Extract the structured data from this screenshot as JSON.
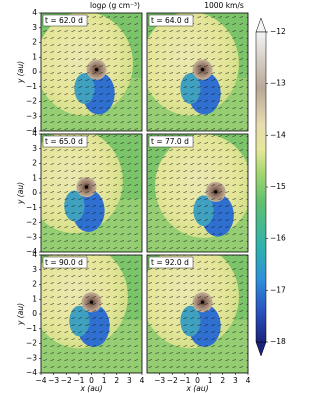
{
  "chart_data": [
    {
      "type": "heatmap",
      "label": "t = 62.0 d",
      "xlim": [
        -4,
        4
      ],
      "ylim": [
        -4,
        4
      ],
      "ylabel": "y (au)",
      "yticks": [
        {
          "value": -4,
          "label": "−4"
        },
        {
          "value": -3,
          "label": "−3"
        },
        {
          "value": -2,
          "label": "−2"
        },
        {
          "value": -1,
          "label": "−1"
        },
        0,
        1,
        2,
        3,
        4
      ]
    },
    {
      "type": "heatmap",
      "label": "t = 64.0 d",
      "xlim": [
        -4,
        4
      ],
      "ylim": [
        -4,
        4
      ]
    },
    {
      "type": "heatmap",
      "label": "t = 65.0 d",
      "xlim": [
        -4,
        4
      ],
      "ylim": [
        -4,
        4
      ],
      "ylabel": "y (au)",
      "yticks": [
        {
          "value": -4,
          "label": "−4"
        },
        {
          "value": -3,
          "label": "−3"
        },
        {
          "value": -2,
          "label": "−2"
        },
        {
          "value": -1,
          "label": "−1"
        },
        0,
        1,
        2,
        3,
        4
      ]
    },
    {
      "type": "heatmap",
      "label": "t = 77.0 d",
      "xlim": [
        -4,
        4
      ],
      "ylim": [
        -4,
        4
      ]
    },
    {
      "type": "heatmap",
      "label": "t = 90.0 d",
      "xlim": [
        -4,
        4
      ],
      "ylim": [
        -4,
        4
      ],
      "ylabel": "y (au)",
      "xlabel": "x (au)",
      "yticks": [
        {
          "value": -4,
          "label": "−4"
        },
        {
          "value": -3,
          "label": "−3"
        },
        {
          "value": -2,
          "label": "−2"
        },
        {
          "value": -1,
          "label": "−1"
        },
        0,
        1,
        2,
        3,
        4
      ],
      "xticks": [
        {
          "value": -4,
          "label": "−4"
        },
        {
          "value": -3,
          "label": "−3"
        },
        {
          "value": -2,
          "label": "−2"
        },
        {
          "value": -1,
          "label": "−1"
        },
        0,
        1,
        2,
        3,
        4
      ]
    },
    {
      "type": "heatmap",
      "label": "t = 92.0 d",
      "xlim": [
        -4,
        4
      ],
      "ylim": [
        -4,
        4
      ],
      "xlabel": "x (au)",
      "xticks": [
        {
          "value": -3,
          "label": "−3"
        },
        {
          "value": -2,
          "label": "−2"
        },
        {
          "value": -1,
          "label": "−1"
        },
        0,
        1,
        2,
        3,
        4
      ]
    },
    {
      "type": "colorbar",
      "title": "logρ (g cm⁻³)",
      "annotation": "1000 km/s",
      "ylim": [
        -18,
        -12
      ],
      "yticks": [
        {
          "value": -12,
          "label": "−12"
        },
        {
          "value": -13,
          "label": "−13"
        },
        {
          "value": -14,
          "label": "−14"
        },
        {
          "value": -15,
          "label": "−15"
        },
        {
          "value": -16,
          "label": "−16"
        },
        {
          "value": -17,
          "label": "−17"
        },
        {
          "value": -18,
          "label": "−18"
        }
      ]
    }
  ]
}
